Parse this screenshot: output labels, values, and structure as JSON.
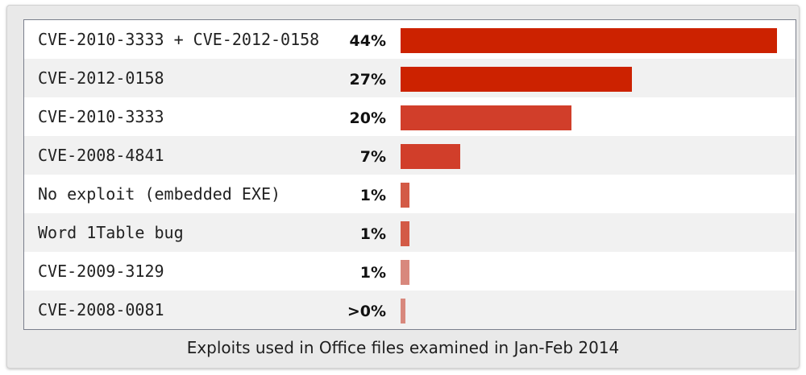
{
  "caption": "Exploits used in Office files examined in Jan-Feb 2014",
  "chart_data": {
    "type": "bar",
    "orientation": "horizontal",
    "title": "",
    "xlabel": "",
    "ylabel": "",
    "xlim": [
      0,
      44
    ],
    "grid": false,
    "categories": [
      "CVE-2010-3333 + CVE-2012-0158",
      "CVE-2012-0158",
      "CVE-2010-3333",
      "CVE-2008-4841",
      "No exploit (embedded EXE)",
      "Word 1Table bug",
      "CVE-2009-3129",
      "CVE-2008-0081"
    ],
    "values": [
      44,
      27,
      20,
      7,
      1,
      1,
      1,
      0.5
    ],
    "value_labels": [
      "44%",
      "27%",
      "20%",
      "7%",
      "1%",
      "1%",
      "1%",
      ">0%"
    ],
    "bar_colors": [
      "#cc2200",
      "#cc2200",
      "#d13e2a",
      "#d13e2a",
      "#d35a46",
      "#d35a46",
      "#d8887d",
      "#d8887d"
    ]
  }
}
